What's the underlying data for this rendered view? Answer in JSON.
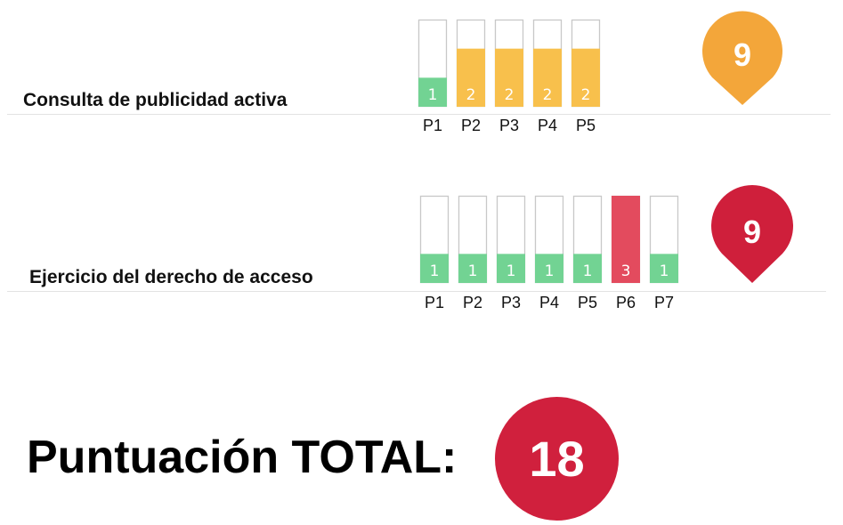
{
  "colors": {
    "level_1": "#72d393",
    "level_2": "#f8c04c",
    "level_3": "#e34b5e",
    "pin_orange": "#f3a63a",
    "pin_red": "#cf1f3b",
    "total_circle": "#d0203d",
    "bar_outline": "#c8c8c8"
  },
  "chart_data": [
    {
      "type": "bar",
      "title": "Consulta de publicidad activa",
      "categories": [
        "P1",
        "P2",
        "P3",
        "P4",
        "P5"
      ],
      "values": [
        1,
        2,
        2,
        2,
        2
      ],
      "ylim": [
        0,
        3
      ],
      "score": "9",
      "score_color": "pin_orange"
    },
    {
      "type": "bar",
      "title": "Ejercicio del derecho de acceso",
      "categories": [
        "P1",
        "P2",
        "P3",
        "P4",
        "P5",
        "P6",
        "P7"
      ],
      "values": [
        1,
        1,
        1,
        1,
        1,
        3,
        1
      ],
      "ylim": [
        0,
        3
      ],
      "score": "9",
      "score_color": "pin_red"
    }
  ],
  "total": {
    "label": "Puntuación TOTAL:",
    "value": "18"
  }
}
